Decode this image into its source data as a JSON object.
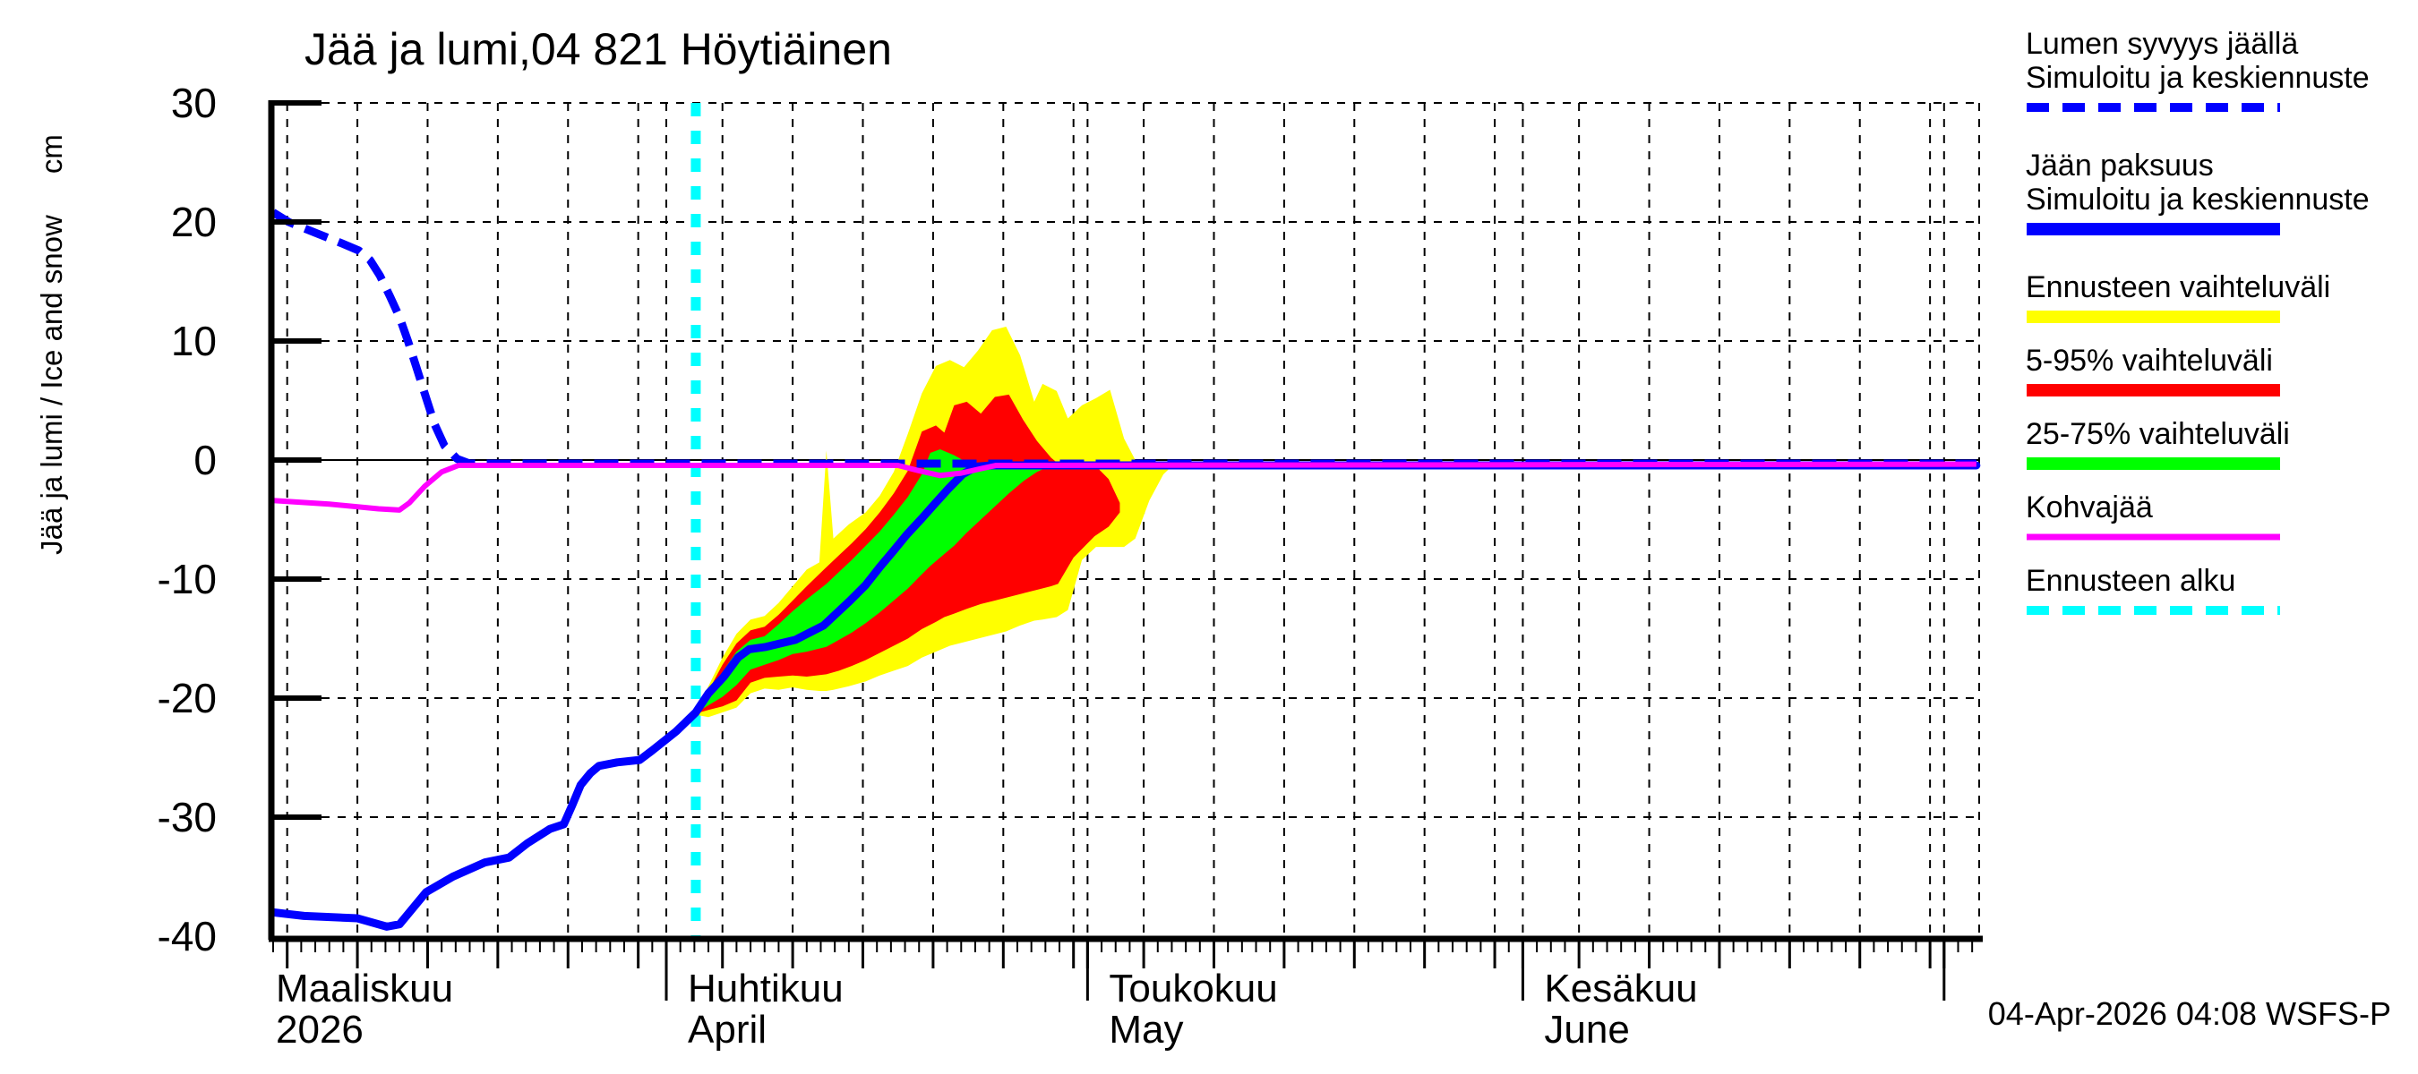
{
  "title": "Jää ja lumi,04 821 Höytiäinen",
  "y_axis": {
    "label": "Jää ja lumi / Ice and snow",
    "unit": "cm",
    "tick_labels": [
      "30",
      "20",
      "10",
      "0",
      "-10",
      "-20",
      "-30",
      "-40"
    ],
    "tick_values": [
      30,
      20,
      10,
      0,
      -10,
      -20,
      -30,
      -40
    ]
  },
  "x_axis": {
    "start_date": "2026-03-04",
    "months": [
      {
        "label": "Maaliskuu",
        "sublabel": "2026",
        "day": 0
      },
      {
        "label": "Huhtikuu",
        "sublabel": "April",
        "day": 28
      },
      {
        "label": "Toukokuu",
        "sublabel": "May",
        "day": 58
      },
      {
        "label": "Kesäkuu",
        "sublabel": "June",
        "day": 89
      }
    ],
    "month_tick_days": [
      28,
      58,
      89,
      119
    ]
  },
  "footer": {
    "timestamp": "04-Apr-2026 04:08 WSFS-P"
  },
  "colors": {
    "blue": "#0000ff",
    "yellow": "#ffff00",
    "red": "#ff0000",
    "green": "#00ff00",
    "magenta": "#ff00ff",
    "cyan": "#00ffff",
    "black": "#000000"
  },
  "legend": [
    {
      "lines": [
        "Lumen syvyys jäällä",
        "Simuloitu ja keskiennuste"
      ],
      "color": "#0000ff",
      "dashed": true,
      "width": 10
    },
    {
      "lines": [
        "Jään paksuus",
        "Simuloitu ja keskiennuste"
      ],
      "color": "#0000ff",
      "dashed": false,
      "width": 14
    },
    {
      "lines": [
        "Ennusteen vaihteluväli"
      ],
      "color": "#ffff00",
      "dashed": false,
      "width": 14
    },
    {
      "lines": [
        "5-95% vaihteluväli"
      ],
      "color": "#ff0000",
      "dashed": false,
      "width": 14
    },
    {
      "lines": [
        "25-75% vaihteluväli"
      ],
      "color": "#00ff00",
      "dashed": false,
      "width": 14
    },
    {
      "lines": [
        "Kohvajää"
      ],
      "color": "#ff00ff",
      "dashed": false,
      "width": 7
    },
    {
      "lines": [
        "Ennusteen alku"
      ],
      "color": "#00ffff",
      "dashed": true,
      "width": 10
    }
  ],
  "chart_data": {
    "type": "line",
    "title": "Jää ja lumi,04 821 Höytiäinen",
    "ylabel": "Jää ja lumi / Ice and snow (cm)",
    "ylim": [
      -40,
      30
    ],
    "x_unit": "days since 2026-03-04",
    "x_range": [
      0,
      121.5
    ],
    "forecast_start_day": 30.1,
    "grid": {
      "y_dashed_values": [
        30,
        20,
        10,
        -10,
        -20,
        -30
      ],
      "y_solid_values": [
        0
      ],
      "x_days": [
        1,
        6,
        11,
        16,
        21,
        26,
        28,
        32,
        37,
        42,
        47,
        52,
        57,
        58,
        62,
        67,
        72,
        77,
        82,
        87,
        89,
        93,
        98,
        103,
        108,
        113,
        118,
        119,
        121.5
      ]
    },
    "series": [
      {
        "name": "Lumen syvyys jäällä (simuloitu ja keskiennuste)",
        "color": "#0000ff",
        "style": "dashed",
        "points": [
          [
            0,
            20.8
          ],
          [
            1.1,
            20.0
          ],
          [
            3.2,
            19.0
          ],
          [
            4.9,
            18.2
          ],
          [
            6.1,
            17.6
          ],
          [
            6.9,
            16.8
          ],
          [
            7.6,
            15.5
          ],
          [
            8.3,
            13.8
          ],
          [
            9,
            12.0
          ],
          [
            9.6,
            10.0
          ],
          [
            10.2,
            7.8
          ],
          [
            10.9,
            5.2
          ],
          [
            11.5,
            3.0
          ],
          [
            12.2,
            1.2
          ],
          [
            13.1,
            0.1
          ],
          [
            14,
            -0.3
          ],
          [
            121.3,
            -0.3
          ]
        ]
      },
      {
        "name": "Jään paksuus (simuloitu ja keskiennuste)",
        "color": "#0000ff",
        "style": "solid",
        "points": [
          [
            0,
            -38.0
          ],
          [
            2.2,
            -38.3
          ],
          [
            6,
            -38.5
          ],
          [
            8.1,
            -39.2
          ],
          [
            9,
            -39.0
          ],
          [
            10.9,
            -36.3
          ],
          [
            12.8,
            -35.0
          ],
          [
            15.1,
            -33.8
          ],
          [
            16.8,
            -33.4
          ],
          [
            18.1,
            -32.2
          ],
          [
            19.7,
            -31.0
          ],
          [
            20.7,
            -30.6
          ],
          [
            21.3,
            -29.0
          ],
          [
            21.9,
            -27.3
          ],
          [
            22.6,
            -26.3
          ],
          [
            23.2,
            -25.7
          ],
          [
            24.5,
            -25.4
          ],
          [
            26.1,
            -25.2
          ],
          [
            27,
            -24.4
          ],
          [
            28.7,
            -22.8
          ],
          [
            30.1,
            -21.2
          ],
          [
            31,
            -19.6
          ],
          [
            32.1,
            -18.2
          ],
          [
            33.1,
            -16.6
          ],
          [
            33.9,
            -15.9
          ],
          [
            35.1,
            -15.7
          ],
          [
            37.2,
            -15.1
          ],
          [
            39.2,
            -13.9
          ],
          [
            41.1,
            -11.8
          ],
          [
            42.2,
            -10.5
          ],
          [
            43.2,
            -9.0
          ],
          [
            44.2,
            -7.6
          ],
          [
            45.1,
            -6.3
          ],
          [
            46.2,
            -4.9
          ],
          [
            47.1,
            -3.7
          ],
          [
            48.1,
            -2.4
          ],
          [
            49.1,
            -1.2
          ],
          [
            50.1,
            -0.55
          ],
          [
            51.2,
            -0.45
          ],
          [
            121.3,
            -0.45
          ]
        ]
      },
      {
        "name": "Kohvajää",
        "color": "#ff00ff",
        "style": "solid",
        "points": [
          [
            0,
            -3.4
          ],
          [
            4,
            -3.7
          ],
          [
            7.5,
            -4.1
          ],
          [
            9,
            -4.2
          ],
          [
            9.7,
            -3.6
          ],
          [
            10.8,
            -2.2
          ],
          [
            12,
            -1.0
          ],
          [
            13.2,
            -0.45
          ],
          [
            44.5,
            -0.45
          ],
          [
            46,
            -0.9
          ],
          [
            47.5,
            -1.3
          ],
          [
            49,
            -1.1
          ],
          [
            50.5,
            -0.7
          ],
          [
            51.5,
            -0.45
          ],
          [
            121.3,
            -0.35
          ]
        ]
      }
    ],
    "bands": [
      {
        "name": "Ennusteen vaihteluväli",
        "color": "#ffff00",
        "points": [
          [
            30.1,
            -21.0,
            -21.4
          ],
          [
            31,
            -19.0,
            -21.6
          ],
          [
            32,
            -16.6,
            -21.2
          ],
          [
            33,
            -14.6,
            -20.8
          ],
          [
            34,
            -13.4,
            -19.6
          ],
          [
            35,
            -13.1,
            -19.2
          ],
          [
            36,
            -12.0,
            -19.3
          ],
          [
            37,
            -10.6,
            -19.1
          ],
          [
            38,
            -9.2,
            -19.3
          ],
          [
            38.9,
            -8.6,
            -19.4
          ],
          [
            39.4,
            0.8,
            -19.4
          ],
          [
            39.9,
            -6.6,
            -19.3
          ],
          [
            41,
            -5.4,
            -19.0
          ],
          [
            42.2,
            -4.4,
            -18.6
          ],
          [
            43.2,
            -3.0,
            -18.1
          ],
          [
            44.2,
            -1.0,
            -17.7
          ],
          [
            45.2,
            2.2,
            -17.3
          ],
          [
            46.2,
            5.6,
            -16.6
          ],
          [
            47.2,
            7.9,
            -16.1
          ],
          [
            48.2,
            8.4,
            -15.6
          ],
          [
            49.2,
            7.8,
            -15.3
          ],
          [
            50.2,
            9.2,
            -15.0
          ],
          [
            51.2,
            10.9,
            -14.7
          ],
          [
            52.2,
            11.2,
            -14.4
          ],
          [
            53.2,
            8.8,
            -13.9
          ],
          [
            54.2,
            4.9,
            -13.5
          ],
          [
            54.8,
            6.4,
            -13.4
          ],
          [
            55.8,
            5.8,
            -13.2
          ],
          [
            56.6,
            3.5,
            -12.6
          ],
          [
            57.6,
            4.6,
            -8.4
          ],
          [
            58.6,
            5.2,
            -7.3
          ],
          [
            59.6,
            5.9,
            -7.3
          ],
          [
            60.6,
            1.8,
            -7.3
          ],
          [
            61.4,
            0.0,
            -6.6
          ],
          [
            62.4,
            -0.1,
            -3.4
          ],
          [
            63.4,
            -0.2,
            -1.2
          ],
          [
            64.1,
            -0.3,
            -0.4
          ]
        ]
      },
      {
        "name": "5-95% vaihteluväli",
        "color": "#ff0000",
        "points": [
          [
            30.1,
            -21.1,
            -21.3
          ],
          [
            31,
            -19.4,
            -21.0
          ],
          [
            32,
            -17.2,
            -20.7
          ],
          [
            33,
            -15.4,
            -20.2
          ],
          [
            34,
            -14.3,
            -18.7
          ],
          [
            35,
            -14.0,
            -18.3
          ],
          [
            36,
            -13.0,
            -18.2
          ],
          [
            37,
            -11.8,
            -18.1
          ],
          [
            38,
            -10.6,
            -18.2
          ],
          [
            39.4,
            -9.0,
            -18.0
          ],
          [
            40.3,
            -8.0,
            -17.7
          ],
          [
            41.2,
            -7.0,
            -17.3
          ],
          [
            42.2,
            -5.8,
            -16.8
          ],
          [
            43.2,
            -4.4,
            -16.2
          ],
          [
            44.2,
            -2.8,
            -15.6
          ],
          [
            45.2,
            -0.9,
            -15.0
          ],
          [
            46.2,
            2.4,
            -14.2
          ],
          [
            47.2,
            2.9,
            -13.6
          ],
          [
            47.8,
            2.3,
            -13.2
          ],
          [
            48.5,
            4.6,
            -12.9
          ],
          [
            49.4,
            4.9,
            -12.5
          ],
          [
            50.4,
            3.9,
            -12.1
          ],
          [
            51.4,
            5.3,
            -11.8
          ],
          [
            52.4,
            5.5,
            -11.5
          ],
          [
            53.4,
            3.4,
            -11.2
          ],
          [
            54.4,
            1.6,
            -10.9
          ],
          [
            55.4,
            0.2,
            -10.6
          ],
          [
            55.9,
            -0.3,
            -10.4
          ],
          [
            57,
            -0.3,
            -8.2
          ],
          [
            58.5,
            -0.4,
            -6.4
          ],
          [
            59.5,
            -1.6,
            -5.6
          ],
          [
            60.3,
            -3.6,
            -4.4
          ]
        ]
      },
      {
        "name": "25-75% vaihteluväli",
        "color": "#00ff00",
        "points": [
          [
            30.1,
            -21.15,
            -21.25
          ],
          [
            31,
            -19.6,
            -20.6
          ],
          [
            32,
            -17.8,
            -19.9
          ],
          [
            33,
            -16.1,
            -18.9
          ],
          [
            34,
            -15.1,
            -17.6
          ],
          [
            35,
            -14.8,
            -17.2
          ],
          [
            36,
            -13.8,
            -16.8
          ],
          [
            37,
            -12.7,
            -16.3
          ],
          [
            38,
            -11.7,
            -16.1
          ],
          [
            39.4,
            -10.4,
            -15.7
          ],
          [
            40.3,
            -9.4,
            -15.1
          ],
          [
            41.2,
            -8.4,
            -14.5
          ],
          [
            42.2,
            -7.2,
            -13.7
          ],
          [
            43.2,
            -6.0,
            -12.8
          ],
          [
            44.2,
            -4.6,
            -11.8
          ],
          [
            45.2,
            -3.1,
            -10.8
          ],
          [
            46.2,
            -1.2,
            -9.6
          ],
          [
            46.8,
            0.6,
            -8.9
          ],
          [
            47.5,
            0.9,
            -8.2
          ],
          [
            48.5,
            0.4,
            -7.2
          ],
          [
            49.4,
            -0.2,
            -6.1
          ],
          [
            50.4,
            -0.3,
            -5.0
          ],
          [
            51.4,
            -0.3,
            -3.9
          ],
          [
            52.4,
            -0.3,
            -2.8
          ],
          [
            53.4,
            -0.3,
            -1.8
          ],
          [
            54.4,
            -0.3,
            -1.0
          ],
          [
            55.5,
            -0.3,
            -0.4
          ]
        ]
      }
    ]
  }
}
